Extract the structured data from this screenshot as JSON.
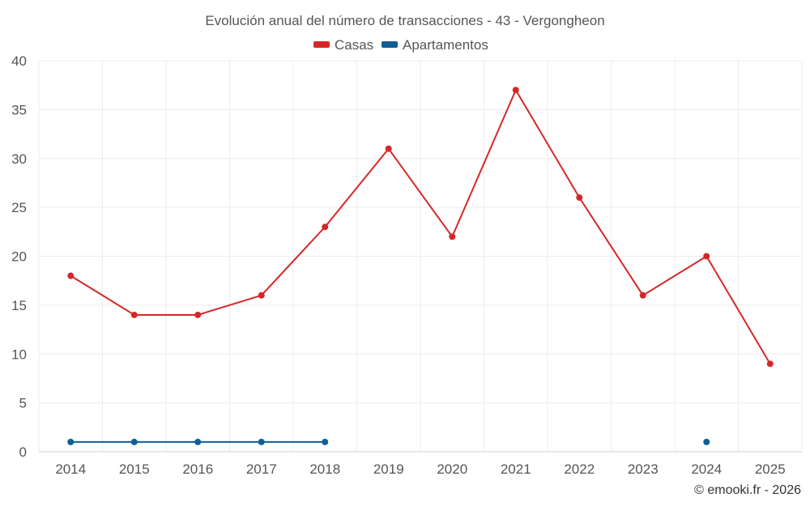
{
  "chart_data": {
    "type": "line",
    "title": "Evolución anual del número de transacciones - 43 - Vergongheon",
    "xlabel": "",
    "ylabel": "",
    "categories": [
      "2014",
      "2015",
      "2016",
      "2017",
      "2018",
      "2019",
      "2020",
      "2021",
      "2022",
      "2023",
      "2024",
      "2025"
    ],
    "ylim": [
      0,
      40
    ],
    "yticks": [
      0,
      5,
      10,
      15,
      20,
      25,
      30,
      35,
      40
    ],
    "grid": true,
    "legend_position": "top-center",
    "series": [
      {
        "name": "Casas",
        "color": "#d62728",
        "values": [
          18,
          14,
          14,
          16,
          23,
          31,
          22,
          37,
          26,
          16,
          20,
          9
        ]
      },
      {
        "name": "Apartamentos",
        "color": "#0f5f99",
        "values": [
          1,
          1,
          1,
          1,
          1,
          null,
          null,
          null,
          null,
          null,
          1,
          null
        ]
      }
    ]
  },
  "credit": "© emooki.fr - 2026"
}
